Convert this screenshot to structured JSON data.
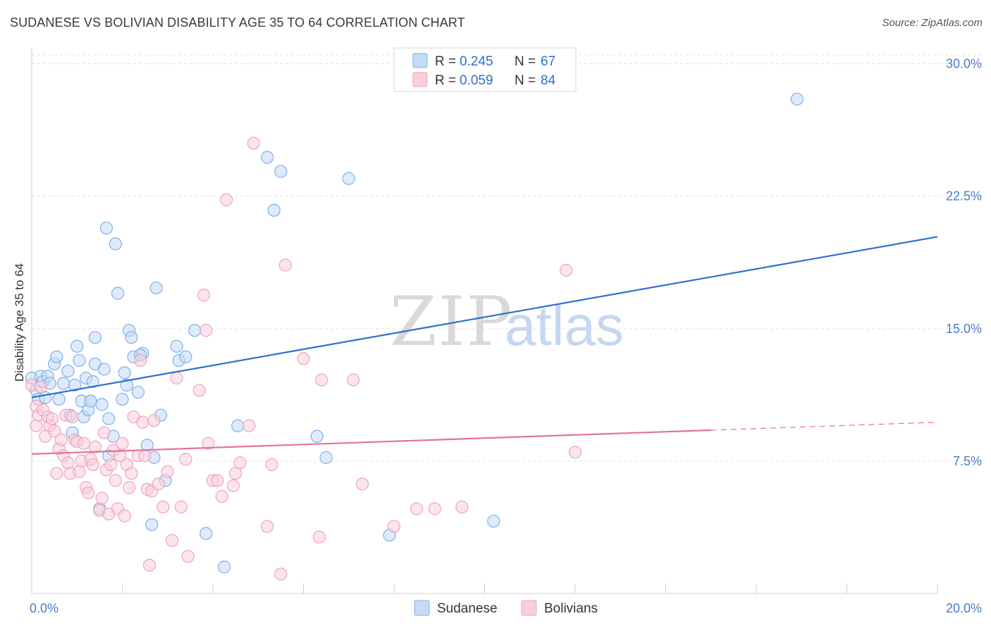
{
  "title": "SUDANESE VS BOLIVIAN DISABILITY AGE 35 TO 64 CORRELATION CHART",
  "source": "Source: ZipAtlas.com",
  "watermark": {
    "zip": "ZIP",
    "atlas": "atlas"
  },
  "chart_data": {
    "type": "scatter",
    "xlabel": "",
    "ylabel": "Disability Age 35 to 64",
    "xlim": [
      0,
      20
    ],
    "ylim": [
      0,
      30.5
    ],
    "x_tick_labels": [
      {
        "value": 0,
        "label": "0.0%"
      },
      {
        "value": 20,
        "label": "20.0%"
      }
    ],
    "y_tick_labels": [
      {
        "value": 7.5,
        "label": "7.5%"
      },
      {
        "value": 15,
        "label": "15.0%"
      },
      {
        "value": 22.5,
        "label": "22.5%"
      },
      {
        "value": 30,
        "label": "30.0%"
      }
    ],
    "grid": true,
    "legend_position": "top-center",
    "legend": [
      {
        "r_label": "R = ",
        "r_value": "0.245",
        "n_label": "N = ",
        "n_value": "67"
      },
      {
        "r_label": "R = ",
        "r_value": "0.059",
        "n_label": "N = ",
        "n_value": "84"
      }
    ],
    "series": [
      {
        "name": "Sudanese",
        "color": "#7fb0e8",
        "fill": "#c5dbf5",
        "trend_color": "#2f6fcf",
        "trend": {
          "x": [
            0,
            20
          ],
          "y": [
            11.1,
            20.2
          ],
          "solid_to": 20
        },
        "points": [
          [
            0.0,
            12.2
          ],
          [
            0.1,
            11.5
          ],
          [
            0.15,
            11.0
          ],
          [
            0.2,
            12.3
          ],
          [
            0.25,
            12.0
          ],
          [
            0.3,
            11.1
          ],
          [
            0.35,
            12.3
          ],
          [
            0.4,
            11.9
          ],
          [
            0.5,
            13.0
          ],
          [
            0.55,
            13.4
          ],
          [
            0.6,
            11.0
          ],
          [
            0.7,
            11.9
          ],
          [
            0.8,
            12.6
          ],
          [
            0.85,
            10.1
          ],
          [
            0.9,
            9.1
          ],
          [
            0.95,
            11.8
          ],
          [
            1.0,
            14.0
          ],
          [
            1.05,
            13.2
          ],
          [
            1.1,
            10.9
          ],
          [
            1.15,
            10.0
          ],
          [
            1.2,
            12.2
          ],
          [
            1.25,
            10.4
          ],
          [
            1.3,
            10.9
          ],
          [
            1.35,
            12.0
          ],
          [
            1.4,
            14.5
          ],
          [
            1.4,
            13.0
          ],
          [
            1.5,
            4.8
          ],
          [
            1.55,
            10.7
          ],
          [
            1.6,
            12.7
          ],
          [
            1.65,
            20.7
          ],
          [
            1.7,
            7.8
          ],
          [
            1.7,
            9.9
          ],
          [
            1.8,
            8.9
          ],
          [
            1.85,
            19.8
          ],
          [
            1.9,
            17.0
          ],
          [
            2.0,
            11.0
          ],
          [
            2.05,
            12.5
          ],
          [
            2.1,
            11.8
          ],
          [
            2.15,
            14.9
          ],
          [
            2.2,
            14.5
          ],
          [
            2.25,
            13.4
          ],
          [
            2.35,
            11.4
          ],
          [
            2.45,
            13.6
          ],
          [
            2.55,
            8.4
          ],
          [
            2.65,
            3.9
          ],
          [
            2.7,
            7.7
          ],
          [
            2.75,
            17.3
          ],
          [
            2.85,
            10.1
          ],
          [
            2.95,
            6.4
          ],
          [
            3.2,
            14.0
          ],
          [
            3.25,
            13.2
          ],
          [
            3.4,
            13.4
          ],
          [
            3.6,
            14.9
          ],
          [
            3.85,
            3.4
          ],
          [
            4.25,
            1.5
          ],
          [
            4.55,
            9.5
          ],
          [
            5.2,
            24.7
          ],
          [
            5.35,
            21.7
          ],
          [
            5.5,
            23.9
          ],
          [
            6.3,
            8.9
          ],
          [
            6.5,
            7.7
          ],
          [
            7.0,
            23.5
          ],
          [
            7.9,
            3.3
          ],
          [
            10.2,
            4.1
          ],
          [
            16.9,
            28.0
          ],
          [
            1.3,
            10.9
          ],
          [
            2.4,
            13.5
          ]
        ]
      },
      {
        "name": "Bolivians",
        "color": "#f0a3bd",
        "fill": "#f8cfdc",
        "trend_color": "#e3729a",
        "trend": {
          "x": [
            0,
            20
          ],
          "y": [
            7.9,
            9.7
          ],
          "solid_to": 15.0
        },
        "points": [
          [
            0.0,
            11.8
          ],
          [
            0.1,
            9.5
          ],
          [
            0.1,
            10.6
          ],
          [
            0.15,
            10.1
          ],
          [
            0.2,
            11.7
          ],
          [
            0.25,
            10.4
          ],
          [
            0.3,
            8.9
          ],
          [
            0.35,
            10.0
          ],
          [
            0.4,
            9.5
          ],
          [
            0.45,
            9.9
          ],
          [
            0.5,
            9.2
          ],
          [
            0.55,
            6.8
          ],
          [
            0.6,
            8.2
          ],
          [
            0.65,
            8.7
          ],
          [
            0.7,
            7.8
          ],
          [
            0.75,
            10.1
          ],
          [
            0.8,
            7.4
          ],
          [
            0.85,
            6.8
          ],
          [
            0.9,
            10.0
          ],
          [
            0.95,
            8.7
          ],
          [
            1.0,
            8.6
          ],
          [
            1.05,
            6.9
          ],
          [
            1.1,
            7.5
          ],
          [
            1.15,
            8.5
          ],
          [
            1.2,
            6.0
          ],
          [
            1.25,
            5.7
          ],
          [
            1.3,
            7.6
          ],
          [
            1.35,
            7.3
          ],
          [
            1.4,
            8.3
          ],
          [
            1.5,
            4.7
          ],
          [
            1.55,
            5.4
          ],
          [
            1.6,
            9.1
          ],
          [
            1.65,
            7.0
          ],
          [
            1.7,
            4.5
          ],
          [
            1.75,
            7.3
          ],
          [
            1.8,
            8.1
          ],
          [
            1.85,
            6.4
          ],
          [
            1.9,
            4.8
          ],
          [
            1.95,
            7.8
          ],
          [
            2.0,
            8.5
          ],
          [
            2.05,
            4.4
          ],
          [
            2.1,
            7.3
          ],
          [
            2.15,
            6.0
          ],
          [
            2.2,
            6.8
          ],
          [
            2.25,
            10.0
          ],
          [
            2.35,
            7.8
          ],
          [
            2.4,
            13.2
          ],
          [
            2.45,
            9.7
          ],
          [
            2.5,
            7.8
          ],
          [
            2.55,
            5.9
          ],
          [
            2.6,
            1.6
          ],
          [
            2.65,
            5.8
          ],
          [
            2.7,
            9.8
          ],
          [
            2.8,
            6.2
          ],
          [
            2.9,
            4.9
          ],
          [
            3.0,
            6.9
          ],
          [
            3.1,
            3.0
          ],
          [
            3.2,
            12.2
          ],
          [
            3.3,
            4.9
          ],
          [
            3.4,
            7.6
          ],
          [
            3.45,
            2.1
          ],
          [
            3.7,
            11.5
          ],
          [
            3.8,
            16.9
          ],
          [
            3.85,
            14.9
          ],
          [
            3.9,
            8.5
          ],
          [
            4.0,
            6.4
          ],
          [
            4.1,
            6.4
          ],
          [
            4.2,
            5.5
          ],
          [
            4.3,
            22.3
          ],
          [
            4.45,
            6.1
          ],
          [
            4.5,
            6.8
          ],
          [
            4.6,
            7.4
          ],
          [
            4.8,
            9.5
          ],
          [
            4.9,
            25.5
          ],
          [
            5.2,
            3.8
          ],
          [
            5.3,
            7.3
          ],
          [
            5.5,
            1.1
          ],
          [
            5.6,
            18.6
          ],
          [
            6.0,
            13.3
          ],
          [
            6.35,
            3.2
          ],
          [
            6.4,
            12.1
          ],
          [
            7.1,
            12.1
          ],
          [
            7.3,
            6.2
          ],
          [
            8.0,
            3.8
          ]
        ],
        "extra_points": [
          [
            8.5,
            4.8
          ],
          [
            8.9,
            4.8
          ],
          [
            9.5,
            4.9
          ],
          [
            11.8,
            18.3
          ],
          [
            12.0,
            8.0
          ]
        ]
      }
    ]
  },
  "bottom_legend": [
    {
      "label": "Sudanese"
    },
    {
      "label": "Bolivians"
    }
  ]
}
